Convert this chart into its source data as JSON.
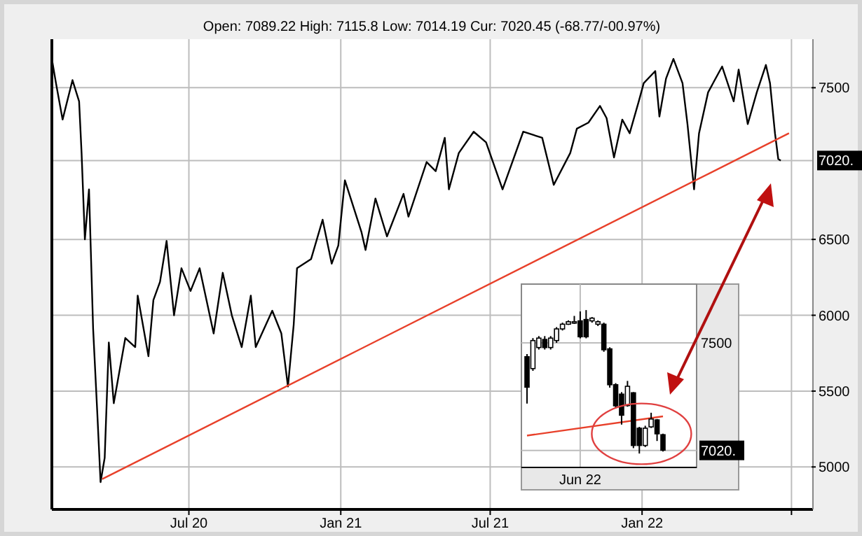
{
  "chart_data": [
    {
      "type": "line",
      "subtitle": "Open: 7089.22 High: 7115.8 Low: 7014.19 Cur: 7020.45 (-68.77/-00.97%)",
      "xlim": [
        "2020-01-17",
        "2022-07-27"
      ],
      "xticks": [
        {
          "value": "2020-07",
          "label": "Jul 20"
        },
        {
          "value": "2021-01",
          "label": "Jan 21"
        },
        {
          "value": "2021-07",
          "label": "Jul 21"
        },
        {
          "value": "2022-01",
          "label": "Jan 22"
        },
        {
          "value": "2022-07",
          "label": null
        }
      ],
      "ylim": [
        4720,
        7820
      ],
      "yticks": [
        5000,
        5500,
        6000,
        6500,
        {
          "value": 7020,
          "label": "7020."
        },
        7500
      ],
      "grid": true,
      "series": [
        {
          "color": "#000000",
          "x": [
            "2020-01-17",
            "2020-01-22",
            "2020-01-30",
            "2020-02-11",
            "2020-02-19",
            "2020-02-22",
            "2020-02-26",
            "2020-03-02",
            "2020-03-07",
            "2020-03-12",
            "2020-03-16",
            "2020-03-21",
            "2020-03-26",
            "2020-04-01",
            "2020-04-15",
            "2020-04-27",
            "2020-04-30",
            "2020-05-13",
            "2020-05-19",
            "2020-05-27",
            "2020-06-04",
            "2020-06-13",
            "2020-06-22",
            "2020-07-03",
            "2020-07-14",
            "2020-07-31",
            "2020-08-11",
            "2020-08-22",
            "2020-09-03",
            "2020-09-14",
            "2020-09-20",
            "2020-10-10",
            "2020-10-21",
            "2020-10-29",
            "2020-11-05",
            "2020-11-09",
            "2020-11-26",
            "2020-12-10",
            "2020-12-21",
            "2020-12-29",
            "2021-01-06",
            "2021-01-26",
            "2021-01-31",
            "2021-02-12",
            "2021-02-26",
            "2021-03-18",
            "2021-03-24",
            "2021-04-15",
            "2021-04-26",
            "2021-05-07",
            "2021-05-12",
            "2021-05-24",
            "2021-06-11",
            "2021-06-26",
            "2021-07-16",
            "2021-08-10",
            "2021-09-02",
            "2021-09-16",
            "2021-10-06",
            "2021-10-14",
            "2021-10-28",
            "2021-11-11",
            "2021-11-19",
            "2021-11-28",
            "2021-12-08",
            "2021-12-17",
            "2021-12-28",
            "2022-01-03",
            "2022-01-17",
            "2022-01-22",
            "2022-01-30",
            "2022-02-08",
            "2022-02-19",
            "2022-02-25",
            "2022-03-05",
            "2022-03-11",
            "2022-03-22",
            "2022-04-08",
            "2022-04-22",
            "2022-04-28",
            "2022-05-09",
            "2022-05-20",
            "2022-05-31",
            "2022-06-05",
            "2022-06-11",
            "2022-06-15",
            "2022-06-18"
          ],
          "values": [
            7690,
            7530,
            7290,
            7550,
            7410,
            7070,
            6500,
            6830,
            5910,
            5360,
            4900,
            5060,
            5820,
            5420,
            5850,
            5790,
            6130,
            5730,
            6100,
            6220,
            6490,
            6000,
            6310,
            6160,
            6310,
            5880,
            6280,
            6000,
            5790,
            6130,
            5790,
            6030,
            5880,
            5530,
            5940,
            6310,
            6370,
            6630,
            6340,
            6460,
            6890,
            6550,
            6430,
            6770,
            6520,
            6800,
            6650,
            7010,
            6950,
            7170,
            6830,
            7070,
            7210,
            7140,
            6830,
            7210,
            7170,
            6860,
            7070,
            7230,
            7270,
            7380,
            7300,
            7040,
            7290,
            7200,
            7410,
            7530,
            7610,
            7310,
            7560,
            7690,
            7530,
            7260,
            6830,
            7200,
            7470,
            7640,
            7410,
            7620,
            7260,
            7470,
            7650,
            7530,
            7200,
            7030,
            7020
          ]
        },
        {
          "color": "#e8402a",
          "x": [
            "2020-03-18",
            "2022-06-28"
          ],
          "values": [
            4920,
            7200
          ]
        }
      ]
    },
    {
      "type": "candlestick",
      "categories": [
        null,
        null,
        null,
        null,
        null,
        null,
        null,
        null,
        null,
        "Jun 22",
        null,
        null,
        null,
        null,
        null,
        null,
        null,
        null,
        null,
        null,
        null,
        null,
        null,
        null
      ],
      "ylim": [
        6944,
        7762
      ],
      "yticks": [
        {
          "value": 7020,
          "label": "7020."
        },
        7500
      ],
      "grid": true,
      "ohlc": [
        [
          7438,
          7450,
          7229,
          7302
        ],
        [
          7385,
          7521,
          7375,
          7510
        ],
        [
          7479,
          7530,
          7470,
          7521
        ],
        [
          7515,
          7530,
          7470,
          7479
        ],
        [
          7479,
          7530,
          7470,
          7521
        ],
        [
          7510,
          7570,
          7500,
          7562
        ],
        [
          7562,
          7590,
          7555,
          7583
        ],
        [
          7583,
          7600,
          7580,
          7594
        ],
        [
          7590,
          7620,
          7585,
          7594
        ],
        [
          7598,
          7640,
          7520,
          7527
        ],
        [
          7604,
          7646,
          7520,
          7527
        ],
        [
          7598,
          7615,
          7590,
          7610
        ],
        [
          7583,
          7600,
          7575,
          7594
        ],
        [
          7583,
          7590,
          7460,
          7469
        ],
        [
          7473,
          7480,
          7300,
          7313
        ],
        [
          7313,
          7320,
          7210,
          7219
        ],
        [
          7271,
          7280,
          7135,
          7177
        ],
        [
          7220,
          7330,
          7215,
          7306
        ],
        [
          7277,
          7280,
          7030,
          7042
        ],
        [
          7119,
          7125,
          7006,
          7042
        ],
        [
          7042,
          7130,
          7035,
          7119
        ],
        [
          7125,
          7188,
          7120,
          7160
        ],
        [
          7156,
          7160,
          7062,
          7094
        ],
        [
          7090,
          7095,
          7015,
          7021
        ]
      ],
      "series": [
        {
          "type": "line",
          "color": "#e8402a",
          "values": [
            7086,
            null,
            null,
            null,
            null,
            null,
            null,
            null,
            null,
            null,
            null,
            null,
            null,
            null,
            null,
            null,
            null,
            null,
            null,
            null,
            null,
            null,
            null,
            7172
          ]
        }
      ]
    }
  ]
}
